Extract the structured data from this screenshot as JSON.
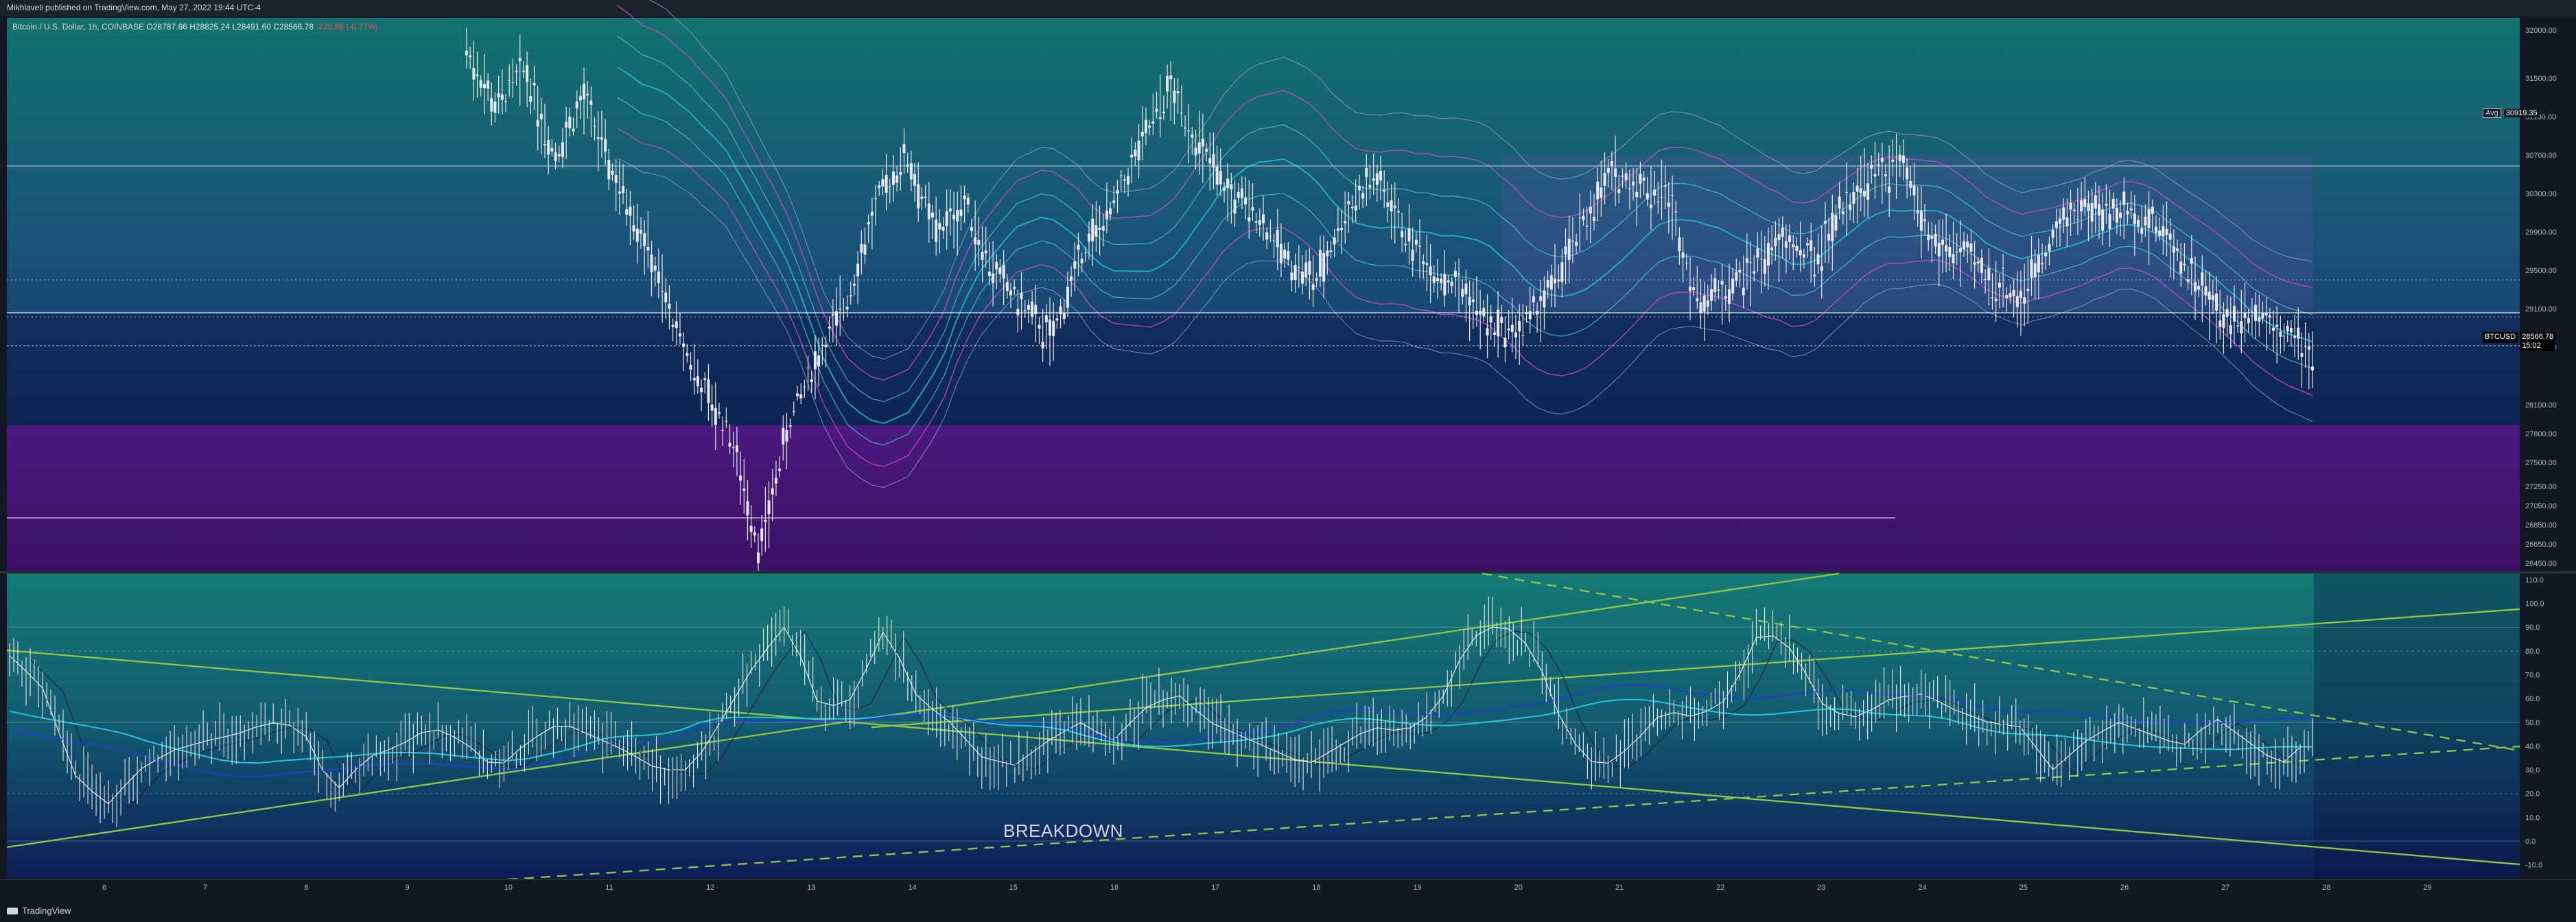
{
  "header": {
    "publish_line": "Mikhlaveli published on TradingView.com, May 27, 2022 19:44 UTC-4"
  },
  "legend": {
    "symbol": "Bitcoin / U.S. Dollar, 1h, COINBASE",
    "o": "O28787.66",
    "h": "H28825.24",
    "l": "L28491.60",
    "c": "C28566.78",
    "change": "-220.88 (-0.77%)"
  },
  "price_badge": {
    "symbol": "BTCUSD",
    "price": "28566.78",
    "countdown": "15:02"
  },
  "avg_badge": {
    "label": "Avg",
    "value": "30919.35"
  },
  "annotation": {
    "text": "BREAKDOWN"
  },
  "footer": {
    "brand": "TradingView"
  },
  "colors": {
    "background": "#131722",
    "price_pane_top": "#126a6a",
    "price_pane_bottom": "#0c1a4a",
    "purple_zone": "#4b1478",
    "osc_pane_top": "#136e6e",
    "osc_pane_bottom": "#0d1d55",
    "trendline": "#8bc34a",
    "candle": "#e0e3eb",
    "band_cyan": "#26c6da",
    "band_magenta": "#d050c8"
  },
  "chart_data": [
    {
      "type": "candlestick",
      "title": "Bitcoin / U.S. Dollar, 1h, COINBASE",
      "x_ticks": [
        "6",
        "7",
        "8",
        "9",
        "10",
        "11",
        "12",
        "13",
        "14",
        "15",
        "16",
        "17",
        "18",
        "19",
        "20",
        "21",
        "22",
        "23",
        "24",
        "25",
        "26",
        "27",
        "28",
        "29"
      ],
      "y_ticks": [
        "32000.00",
        "31500.00",
        "31100.00",
        "30700.00",
        "30300.00",
        "29900.00",
        "29500.00",
        "29100.00",
        "28700.00",
        "28100.00",
        "27800.00",
        "27500.00",
        "27250.00",
        "27050.00",
        "26850.00",
        "26650.00",
        "26450.00"
      ],
      "ylim": [
        26400,
        32100
      ],
      "avg_line": 30919.35,
      "last_price": 28566.78,
      "purple_zone": [
        26400,
        27700
      ],
      "series": [
        {
          "values": [
            31800,
            31200,
            31600,
            30700,
            31300,
            30500,
            29900,
            29000,
            28300,
            27800,
            26600,
            27900,
            28600,
            29200,
            30200,
            30700,
            29900,
            30200,
            29500,
            29100,
            28800,
            29700,
            30100,
            30800,
            31400,
            30800,
            30300,
            30100,
            29600,
            29400,
            30100,
            30500,
            29900,
            29500,
            29300,
            28900,
            28900,
            29300,
            29900,
            30500,
            30400,
            30300,
            29200,
            29300,
            29600,
            29800,
            29600,
            30200,
            30500,
            30600,
            29800,
            29700,
            29400,
            29200,
            29800,
            30200,
            30100,
            30100,
            29900,
            29400,
            29000,
            29100,
            28900,
            28600
          ]
        }
      ]
    },
    {
      "type": "line",
      "title": "",
      "x_ticks": [
        "6",
        "7",
        "8",
        "9",
        "10",
        "11",
        "12",
        "13",
        "14",
        "15",
        "16",
        "17",
        "18",
        "19",
        "20",
        "21",
        "22",
        "23",
        "24",
        "25",
        "26",
        "27",
        "28",
        "29"
      ],
      "y_ticks": [
        "110.0",
        "100.0",
        "90.0",
        "80.0",
        "70.0",
        "60.0",
        "50.0",
        "40.0",
        "30.0",
        "20.0",
        "10.0",
        "0.0",
        "-10.0"
      ],
      "ylim": [
        -15,
        112
      ],
      "series": [
        {
          "values": [
            78,
            65,
            28,
            15,
            30,
            38,
            42,
            45,
            50,
            48,
            20,
            35,
            40,
            48,
            42,
            30,
            42,
            50,
            44,
            38,
            30,
            30,
            52,
            75,
            92,
            55,
            60,
            90,
            60,
            50,
            35,
            32,
            42,
            50,
            42,
            56,
            62,
            50,
            44,
            38,
            32,
            40,
            48,
            46,
            55,
            85,
            92,
            80,
            45,
            30,
            40,
            55,
            52,
            60,
            90,
            80,
            55,
            52,
            60,
            62,
            55,
            50,
            48,
            30,
            42,
            50,
            45,
            40,
            52,
            42,
            32,
            44
          ]
        }
      ]
    }
  ]
}
